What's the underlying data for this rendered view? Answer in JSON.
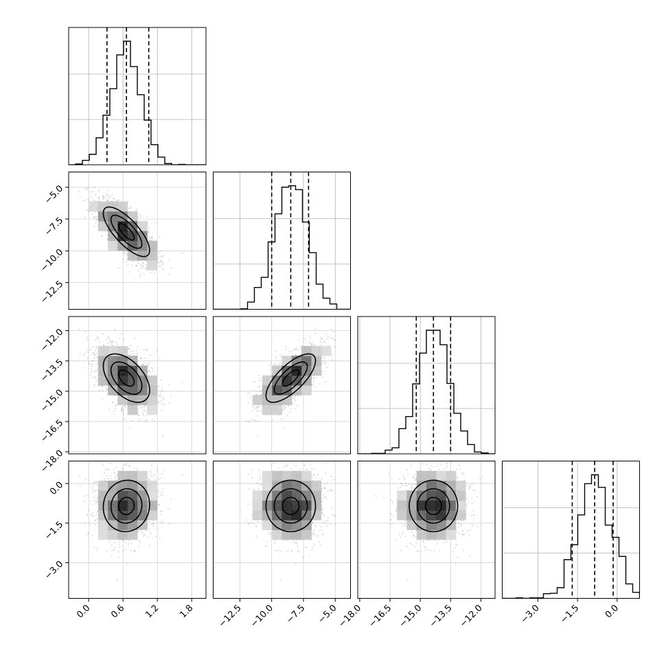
{
  "chart_data": {
    "type": "corner",
    "params": [
      {
        "range": [
          -0.35,
          2.05
        ],
        "ticks": [
          "0.0",
          "0.6",
          "1.2",
          "1.8"
        ],
        "tick_values": [
          0.0,
          0.6,
          1.2,
          1.8
        ],
        "mean": 0.66,
        "sd": 0.27,
        "quantiles": [
          0.32,
          0.66,
          1.05
        ]
      },
      {
        "range": [
          -14.6,
          -3.8
        ],
        "ticks": [
          "−12.5",
          "−10.0",
          "−7.5",
          "−5.0"
        ],
        "tick_values": [
          -12.5,
          -10.0,
          -7.5,
          -5.0
        ],
        "mean": -8.5,
        "sd": 1.3,
        "quantiles": [
          -10.0,
          -8.5,
          -7.1
        ]
      },
      {
        "range": [
          -18.1,
          -11.3
        ],
        "ticks": [
          "−18.0",
          "−16.5",
          "−15.0",
          "−13.5",
          "−12.0"
        ],
        "tick_values": [
          -18.0,
          -16.5,
          -15.0,
          -13.5,
          -12.0
        ],
        "mean": -14.35,
        "sd": 0.8,
        "quantiles": [
          -15.2,
          -14.35,
          -13.5
        ]
      },
      {
        "range": [
          -4.35,
          0.85
        ],
        "ticks": [
          "−3.0",
          "−1.5",
          "0.0"
        ],
        "tick_values": [
          -3.0,
          -1.5,
          0.0
        ],
        "mean": -0.85,
        "sd": 0.65,
        "quantiles": [
          -1.7,
          -0.85,
          -0.15
        ]
      }
    ],
    "correlations": [
      [
        1,
        -0.75,
        -0.5,
        0.05
      ],
      [
        -0.75,
        1,
        0.72,
        0.0
      ],
      [
        -0.5,
        0.72,
        1,
        0.0
      ],
      [
        0.05,
        0.0,
        0.0,
        1
      ]
    ],
    "grid": true,
    "contour_levels": 3,
    "hist_color": "#000000",
    "point_color": "#9a9a9a",
    "quantile_line": "dashed"
  }
}
